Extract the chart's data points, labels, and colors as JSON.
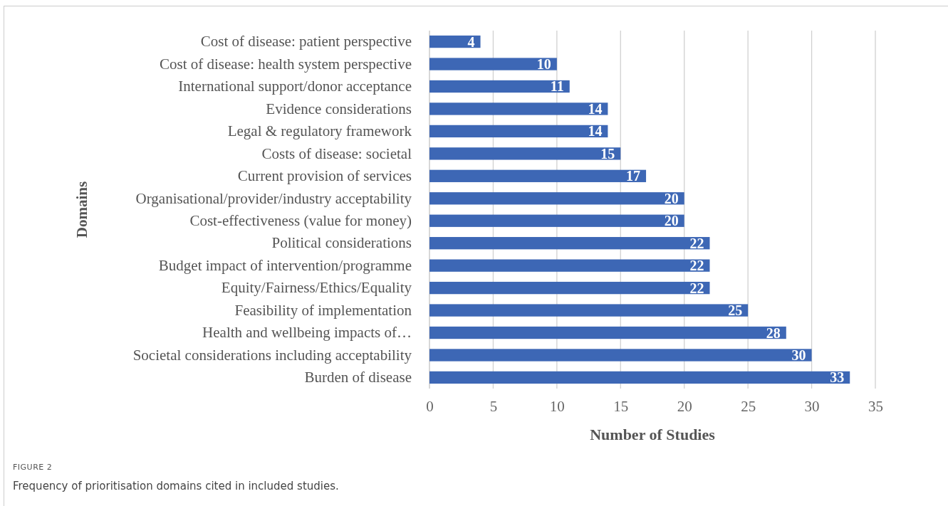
{
  "chart_data": {
    "type": "bar",
    "orientation": "horizontal",
    "xlabel": "Number of Studies",
    "ylabel": "Domains",
    "categories": [
      "Cost of disease: patient perspective",
      "Cost of disease: health system perspective",
      "International support/donor acceptance",
      "Evidence considerations",
      "Legal & regulatory framework",
      "Costs of disease: societal",
      "Current provision of services",
      "Organisational/provider/industry acceptability",
      "Cost-effectiveness (value for money)",
      "Political considerations",
      "Budget impact of intervention/programme",
      "Equity/Fairness/Ethics/Equality",
      "Feasibility of implementation",
      "Health and wellbeing impacts of…",
      "Societal considerations including acceptability",
      "Burden of disease"
    ],
    "values": [
      4,
      10,
      11,
      14,
      14,
      15,
      17,
      20,
      20,
      22,
      22,
      22,
      25,
      28,
      30,
      33
    ],
    "color": "#3d67b5",
    "xlim": [
      0,
      35
    ],
    "xticks": [
      0,
      5,
      10,
      15,
      20,
      25,
      30,
      35
    ],
    "grid": "x",
    "data_labels": true,
    "annotations": [
      "FIGURE 2",
      "Frequency of prioritisation domains cited in included studies."
    ]
  }
}
